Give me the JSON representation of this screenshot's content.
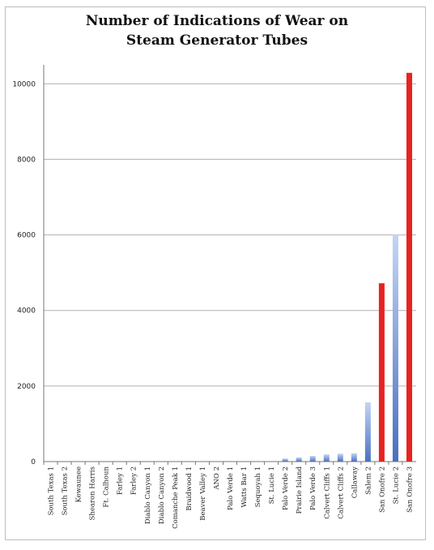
{
  "chart_data": {
    "type": "bar",
    "title_line1": "Number of Indications of Wear on",
    "title_line2": "Steam Generator Tubes",
    "xlabel": "",
    "ylabel": "",
    "ylim": [
      0,
      10500
    ],
    "yticks": [
      "0",
      "2000",
      "4000",
      "6000",
      "8000",
      "10000"
    ],
    "grid": true,
    "categories": [
      "South Texas 1",
      "South Texas 2",
      "Kewaunee",
      "Shearon Harris",
      "Ft. Calhoun",
      "Farley 1",
      "Farley 2",
      "Diablo Canyon 1",
      "Diablo Canyon 2",
      "Comanche Peak 1",
      "Braidwood 1",
      "Beaver Valley 1",
      "ANO 2",
      "Palo Verde 1",
      "Watts Bar 1",
      "Sequoyah 1",
      "St. Lucie 1",
      "Palo Verde 2",
      "Prairie Island",
      "Palo Verde 3",
      "Calvert Cliffs 1",
      "Calvert Cliffs 2",
      "Callaway",
      "Salem 2",
      "San Onofre 2",
      "St. Lucie 2",
      "San Onofre 3"
    ],
    "values": [
      0,
      0,
      0,
      0,
      0,
      0,
      0,
      0,
      0,
      0,
      0,
      0,
      0,
      0,
      0,
      0,
      0,
      80,
      110,
      150,
      190,
      210,
      220,
      1570,
      4720,
      6020,
      10290
    ],
    "highlight": [
      false,
      false,
      false,
      false,
      false,
      false,
      false,
      false,
      false,
      false,
      false,
      false,
      false,
      false,
      false,
      false,
      false,
      false,
      false,
      false,
      false,
      false,
      false,
      false,
      true,
      false,
      true
    ],
    "colors": {
      "normal_top": "#c4d5f5",
      "normal_bottom": "#4a6fbf",
      "highlight": "#e52421",
      "grid": "#b0b0b0",
      "axis": "#777777"
    }
  }
}
